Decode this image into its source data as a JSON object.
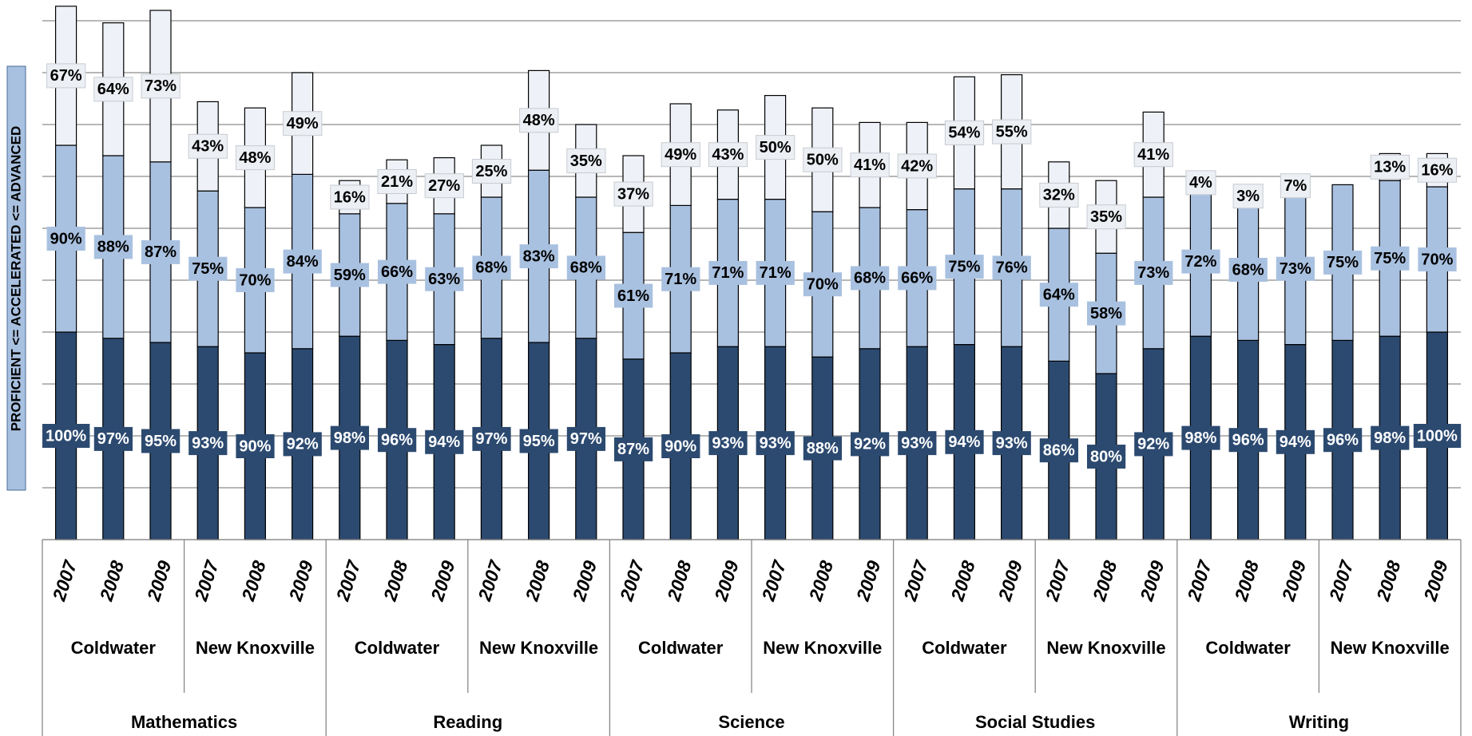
{
  "chart_data": {
    "type": "bar",
    "stacked": true,
    "y_label": "PROFICIENT <= ACCELERATED <= ADVANCED",
    "categories": [
      "2007",
      "2008",
      "2009",
      "2007",
      "2008",
      "2009",
      "2007",
      "2008",
      "2009",
      "2007",
      "2008",
      "2009",
      "2007",
      "2008",
      "2009",
      "2007",
      "2008",
      "2009",
      "2007",
      "2008",
      "2009",
      "2007",
      "2008",
      "2009",
      "2007",
      "2008",
      "2009",
      "2007",
      "2008",
      "2009"
    ],
    "schools": [
      "Coldwater",
      "New Knoxville",
      "Coldwater",
      "New Knoxville",
      "Coldwater",
      "New Knoxville",
      "Coldwater",
      "New Knoxville",
      "Coldwater",
      "New Knoxville"
    ],
    "subjects": [
      "Mathematics",
      "Reading",
      "Science",
      "Social Studies",
      "Writing"
    ],
    "ylim": [
      0,
      260
    ],
    "yticks": [
      0,
      25,
      50,
      75,
      100,
      125,
      150,
      175,
      200,
      225,
      250
    ],
    "grid": true,
    "series": [
      {
        "color": "#2c4a70",
        "values": [
          100,
          97,
          95,
          93,
          90,
          92,
          98,
          96,
          94,
          97,
          95,
          97,
          87,
          90,
          93,
          93,
          88,
          92,
          93,
          94,
          93,
          86,
          80,
          92,
          98,
          96,
          94,
          96,
          98,
          100
        ],
        "value_labels": [
          "100%",
          "97%",
          "95%",
          "93%",
          "90%",
          "92%",
          "98%",
          "96%",
          "94%",
          "97%",
          "95%",
          "97%",
          "87%",
          "90%",
          "93%",
          "93%",
          "88%",
          "92%",
          "93%",
          "94%",
          "93%",
          "86%",
          "80%",
          "92%",
          "98%",
          "96%",
          "94%",
          "96%",
          "98%",
          "100%"
        ]
      },
      {
        "color": "#a9c1e0",
        "values": [
          90,
          88,
          87,
          75,
          70,
          84,
          59,
          66,
          63,
          68,
          83,
          68,
          61,
          71,
          71,
          71,
          70,
          68,
          66,
          75,
          76,
          64,
          58,
          73,
          72,
          68,
          73,
          75,
          75,
          70
        ],
        "value_labels": [
          "90%",
          "88%",
          "87%",
          "75%",
          "70%",
          "84%",
          "59%",
          "66%",
          "63%",
          "68%",
          "83%",
          "68%",
          "61%",
          "71%",
          "71%",
          "71%",
          "70%",
          "68%",
          "66%",
          "75%",
          "76%",
          "64%",
          "58%",
          "73%",
          "72%",
          "68%",
          "73%",
          "75%",
          "75%",
          "70%"
        ]
      },
      {
        "color": "#eef2f8",
        "values": [
          67,
          64,
          73,
          43,
          48,
          49,
          16,
          21,
          27,
          25,
          48,
          35,
          37,
          49,
          43,
          50,
          50,
          41,
          42,
          54,
          55,
          32,
          35,
          41,
          4,
          3,
          7,
          null,
          13,
          16
        ],
        "value_labels": [
          "67%",
          "64%",
          "73%",
          "43%",
          "48%",
          "49%",
          "16%",
          "21%",
          "27%",
          "25%",
          "48%",
          "35%",
          "37%",
          "49%",
          "43%",
          "50%",
          "50%",
          "41%",
          "42%",
          "54%",
          "55%",
          "32%",
          "35%",
          "41%",
          "4%",
          "3%",
          "7%",
          null,
          "13%",
          "16%"
        ]
      }
    ]
  }
}
